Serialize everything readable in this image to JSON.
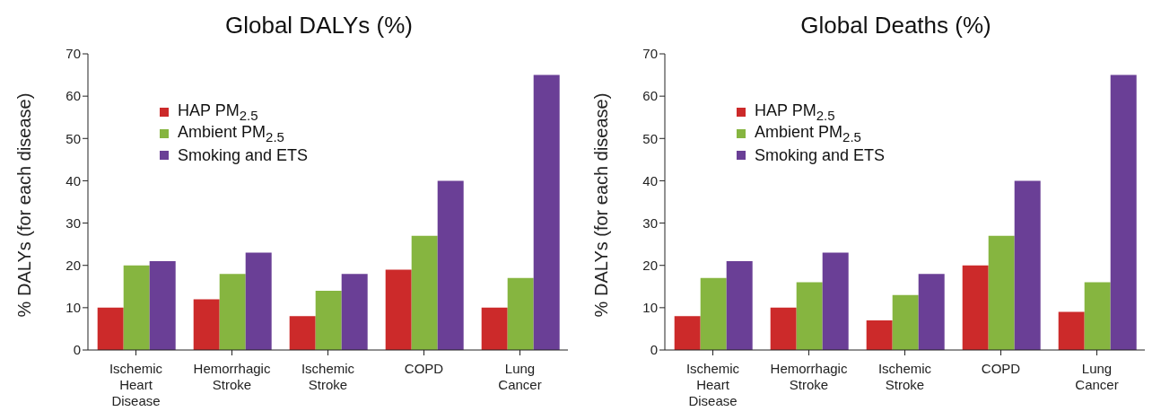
{
  "chart_data": [
    {
      "type": "bar",
      "title": "Global DALYs (%)",
      "ylabel": "% DALYs (for each disease)",
      "categories": [
        "Ischemic Heart Disease",
        "Hemorrhagic Stroke",
        "Ischemic Stroke",
        "COPD",
        "Lung Cancer"
      ],
      "series": [
        {
          "name": "HAP PM$_{2.5}$",
          "color": "#cc2a2a",
          "values": [
            10,
            12,
            8,
            19,
            10
          ]
        },
        {
          "name": "Ambient PM$_{2.5}$",
          "color": "#86b540",
          "values": [
            20,
            18,
            14,
            27,
            17
          ]
        },
        {
          "name": "Smoking and ETS",
          "color": "#6a3f96",
          "values": [
            21,
            23,
            18,
            40,
            65
          ]
        }
      ],
      "ylim": [
        0,
        70
      ],
      "yticks": [
        0,
        10,
        20,
        30,
        40,
        50,
        60,
        70
      ],
      "grid": false,
      "legend": "top left"
    },
    {
      "type": "bar",
      "title": "Global Deaths (%)",
      "ylabel": "% DALYs (for each disease)",
      "categories": [
        "Ischemic Heart Disease",
        "Hemorrhagic Stroke",
        "Ischemic Stroke",
        "COPD",
        "Lung Cancer"
      ],
      "series": [
        {
          "name": "HAP PM$_{2.5}$",
          "color": "#cc2a2a",
          "values": [
            8,
            10,
            7,
            20,
            9
          ]
        },
        {
          "name": "Ambient PM$_{2.5}$",
          "color": "#86b540",
          "values": [
            17,
            16,
            13,
            27,
            16
          ]
        },
        {
          "name": "Smoking and ETS",
          "color": "#6a3f96",
          "values": [
            21,
            23,
            18,
            40,
            65
          ]
        }
      ],
      "ylim": [
        0,
        70
      ],
      "yticks": [
        0,
        10,
        20,
        30,
        40,
        50,
        60,
        70
      ],
      "grid": false,
      "legend": "top left"
    }
  ]
}
